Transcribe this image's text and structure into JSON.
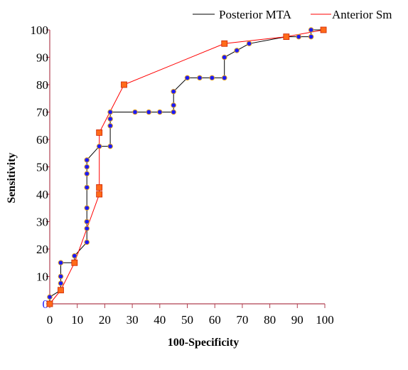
{
  "chart_data": {
    "type": "line",
    "xlabel": "100-Specificity",
    "ylabel": "Sensitivity",
    "xlim": [
      0,
      100
    ],
    "ylim": [
      0,
      100
    ],
    "x_ticks": [
      0,
      10,
      20,
      30,
      40,
      50,
      60,
      70,
      80,
      90,
      100
    ],
    "y_ticks": [
      0,
      10,
      20,
      30,
      40,
      50,
      60,
      70,
      80,
      90,
      100
    ],
    "legend_position": "top-right",
    "series": [
      {
        "name": "Posterior MTA",
        "line_color": "#000000",
        "marker": "circle",
        "marker_color": "#1a1aff",
        "marker_edge": "#e0a020",
        "points": [
          [
            0,
            0
          ],
          [
            0,
            2.5
          ],
          [
            4,
            5
          ],
          [
            4,
            7.5
          ],
          [
            4,
            10
          ],
          [
            4,
            15
          ],
          [
            9,
            15
          ],
          [
            9,
            17.5
          ],
          [
            13.5,
            22.5
          ],
          [
            13.5,
            27.5
          ],
          [
            13.5,
            30
          ],
          [
            13.5,
            35
          ],
          [
            13.5,
            42.5
          ],
          [
            13.5,
            47.5
          ],
          [
            13.5,
            50
          ],
          [
            13.5,
            52.5
          ],
          [
            18,
            57.5
          ],
          [
            22,
            57.5
          ],
          [
            22,
            65
          ],
          [
            22,
            67.5
          ],
          [
            22,
            70
          ],
          [
            31,
            70
          ],
          [
            36,
            70
          ],
          [
            40,
            70
          ],
          [
            45,
            70
          ],
          [
            45,
            72.5
          ],
          [
            45,
            77.5
          ],
          [
            50,
            82.5
          ],
          [
            54.5,
            82.5
          ],
          [
            59,
            82.5
          ],
          [
            63.5,
            82.5
          ],
          [
            63.5,
            90
          ],
          [
            68,
            92.5
          ],
          [
            72.5,
            95
          ],
          [
            86,
            97.5
          ],
          [
            90.5,
            97.5
          ],
          [
            95,
            97.5
          ],
          [
            95,
            100
          ],
          [
            99.5,
            100
          ]
        ]
      },
      {
        "name": "Anterior Sm",
        "line_color": "#ff0000",
        "marker": "square",
        "marker_color": "#ff6a1a",
        "marker_edge": "#cc2200",
        "points": [
          [
            0,
            0
          ],
          [
            4,
            5
          ],
          [
            9,
            15
          ],
          [
            18,
            40
          ],
          [
            18,
            42.5
          ],
          [
            18,
            62.5
          ],
          [
            27,
            80
          ],
          [
            63.5,
            95
          ],
          [
            86,
            97.5
          ],
          [
            99.5,
            100
          ]
        ]
      }
    ]
  }
}
